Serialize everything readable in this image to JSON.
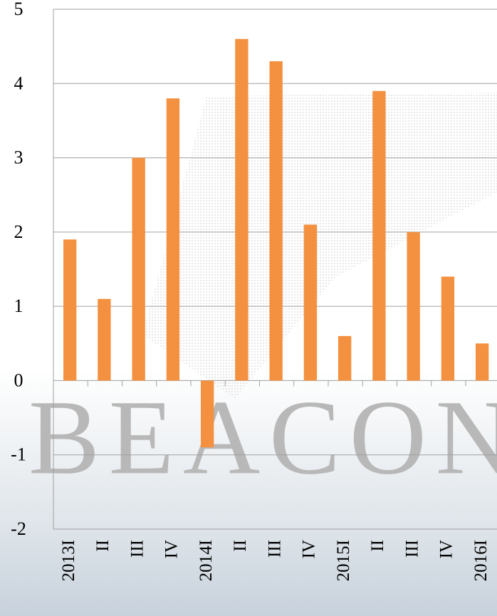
{
  "chart_data": {
    "type": "bar",
    "watermark": "BEACON",
    "categories": [
      "2013I",
      "II",
      "III",
      "IV",
      "2014I",
      "II",
      "III",
      "IV",
      "2015I",
      "II",
      "III",
      "IV",
      "2016I"
    ],
    "values": [
      1.9,
      1.1,
      3.0,
      3.8,
      -0.9,
      4.6,
      4.3,
      2.1,
      0.6,
      3.9,
      2.0,
      1.4,
      0.5
    ],
    "color": "#f39140",
    "ylim": [
      -2,
      5
    ],
    "yticks": [
      -2,
      -1,
      0,
      1,
      2,
      3,
      4,
      5
    ],
    "grid": true
  }
}
